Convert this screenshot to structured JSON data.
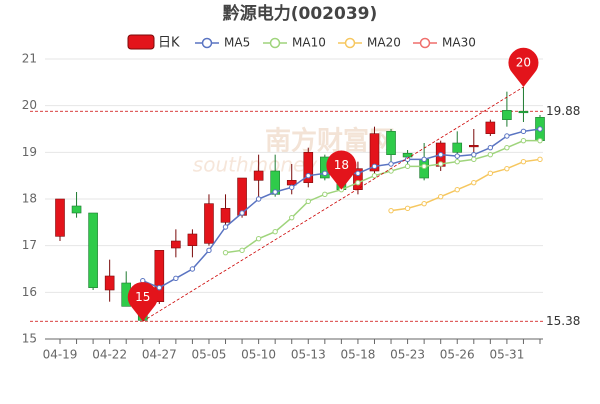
{
  "chart_data": {
    "type": "candlestick",
    "title": "黔源电力(002039)",
    "watermark": [
      "南方财富网",
      "southmoney"
    ],
    "categories": [
      "04-19",
      null,
      null,
      "04-22",
      null,
      null,
      "04-27",
      null,
      null,
      "05-05",
      null,
      null,
      "05-10",
      null,
      null,
      "05-13",
      null,
      null,
      "05-18",
      null,
      null,
      "05-23",
      null,
      null,
      "05-26",
      null,
      null,
      "05-31",
      null,
      null
    ],
    "candles": {
      "name": "日K",
      "up_color": "#e3141b",
      "down_color": "#2fcb4a",
      "open": [
        17.2,
        17.85,
        17.7,
        16.05,
        16.2,
        16.1,
        15.8,
        16.95,
        17.0,
        17.05,
        17.5,
        17.65,
        18.4,
        18.6,
        18.3,
        18.35,
        18.9,
        18.65,
        18.2,
        18.6,
        19.45,
        18.98,
        18.85,
        18.7,
        19.2,
        19.15,
        19.4,
        19.9,
        19.88,
        19.75
      ],
      "high": [
        18.0,
        18.15,
        17.7,
        16.7,
        16.45,
        16.3,
        16.9,
        17.35,
        17.35,
        18.1,
        18.1,
        18.45,
        18.95,
        18.95,
        18.75,
        19.1,
        18.95,
        18.8,
        18.8,
        19.55,
        19.5,
        19.05,
        19.2,
        19.25,
        19.45,
        19.5,
        19.7,
        20.3,
        20.4,
        19.8
      ],
      "low": [
        17.1,
        17.6,
        16.05,
        15.8,
        15.7,
        15.38,
        15.75,
        16.75,
        16.75,
        17.0,
        17.4,
        17.6,
        17.95,
        18.05,
        18.1,
        18.25,
        18.4,
        18.2,
        18.1,
        18.55,
        18.8,
        18.7,
        18.4,
        18.6,
        18.85,
        18.9,
        19.35,
        19.55,
        19.65,
        19.2
      ],
      "close": [
        18.0,
        17.7,
        16.1,
        16.35,
        15.7,
        15.4,
        16.9,
        17.1,
        17.25,
        17.9,
        17.8,
        18.45,
        18.6,
        18.1,
        18.4,
        19.0,
        18.45,
        18.2,
        18.65,
        19.4,
        18.95,
        18.9,
        18.45,
        19.2,
        19.0,
        19.15,
        19.65,
        19.7,
        19.85,
        19.25
      ]
    },
    "series": [
      {
        "name": "MA5",
        "color": "#5a74c2",
        "values": [
          null,
          null,
          null,
          null,
          null,
          16.25,
          16.1,
          16.3,
          16.5,
          16.9,
          17.4,
          17.7,
          18.0,
          18.15,
          18.25,
          18.5,
          18.55,
          18.55,
          18.55,
          18.7,
          18.75,
          18.85,
          18.85,
          18.95,
          18.92,
          18.95,
          19.1,
          19.35,
          19.45,
          19.5
        ]
      },
      {
        "name": "MA10",
        "color": "#9fd47c",
        "values": [
          null,
          null,
          null,
          null,
          null,
          null,
          null,
          null,
          null,
          null,
          16.85,
          16.9,
          17.15,
          17.3,
          17.6,
          17.95,
          18.1,
          18.2,
          18.35,
          18.5,
          18.6,
          18.7,
          18.7,
          18.75,
          18.8,
          18.85,
          18.95,
          19.1,
          19.25,
          19.25
        ]
      },
      {
        "name": "MA20",
        "color": "#f6c75f",
        "values": [
          null,
          null,
          null,
          null,
          null,
          null,
          null,
          null,
          null,
          null,
          null,
          null,
          null,
          null,
          null,
          null,
          null,
          null,
          null,
          null,
          17.75,
          17.8,
          17.9,
          18.05,
          18.2,
          18.35,
          18.55,
          18.65,
          18.8,
          18.85
        ]
      },
      {
        "name": "MA30",
        "color": "#ef6f6c",
        "values": [
          null,
          null,
          null,
          null,
          null,
          null,
          null,
          null,
          null,
          null,
          null,
          null,
          null,
          null,
          null,
          null,
          null,
          null,
          null,
          null,
          null,
          null,
          null,
          null,
          null,
          null,
          null,
          null,
          null,
          null
        ]
      }
    ],
    "hlines": [
      19.88,
      15.38
    ],
    "pins": [
      {
        "label": "20",
        "index": 28,
        "at": "high"
      },
      {
        "label": "15",
        "index": 5,
        "at": "low"
      },
      {
        "label": "18",
        "index": 17,
        "at": "low"
      }
    ],
    "ylim": [
      15,
      21
    ],
    "yticks": [
      15,
      16,
      17,
      18,
      19,
      20,
      21
    ],
    "grid": true
  }
}
